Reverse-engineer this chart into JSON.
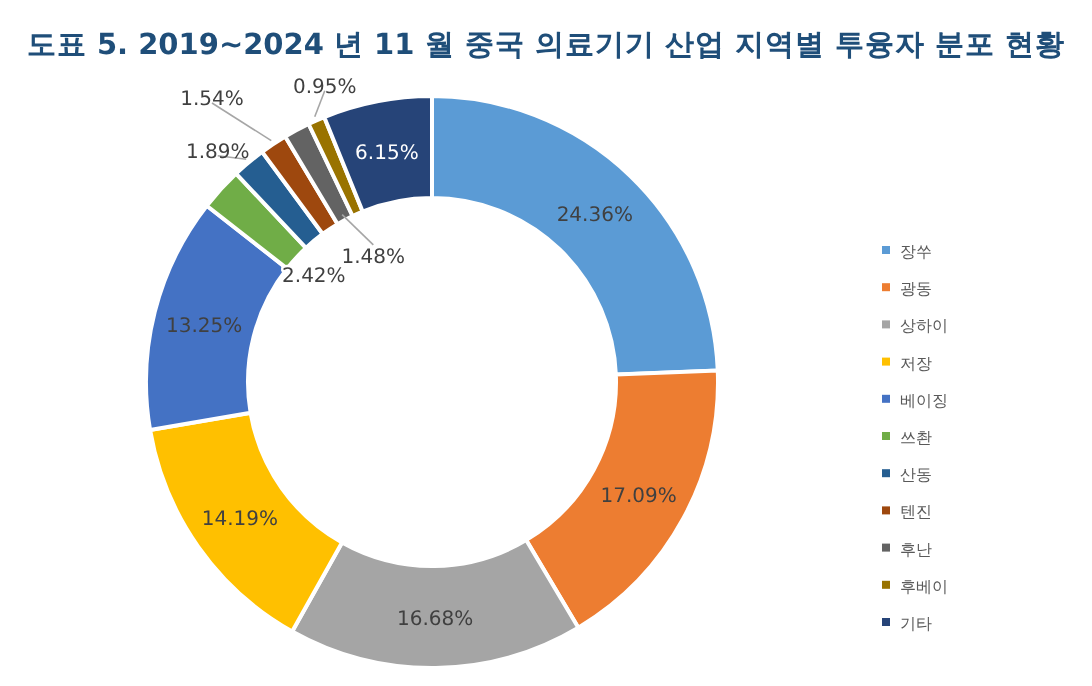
{
  "chart_data": {
    "type": "donut",
    "title": "도표 5. 2019~2024 년 11 월 중국 의료기기 산업 지역별 투융자 분포 현황",
    "categories": [
      "장쑤",
      "광동",
      "상하이",
      "저장",
      "베이징",
      "쓰촨",
      "산동",
      "텐진",
      "후난",
      "후베이",
      "기타"
    ],
    "values": [
      24.36,
      17.09,
      16.68,
      14.19,
      13.25,
      2.42,
      1.89,
      1.54,
      1.48,
      0.95,
      6.15
    ],
    "value_labels": [
      "24.36%",
      "17.09%",
      "16.68%",
      "14.19%",
      "13.25%",
      "2.42%",
      "1.89%",
      "1.54%",
      "1.48%",
      "0.95%",
      "6.15%"
    ],
    "colors": [
      "#5b9bd5",
      "#ed7d31",
      "#a5a5a5",
      "#ffc000",
      "#4472c4",
      "#70ad47",
      "#255e91",
      "#9e480e",
      "#636363",
      "#997300",
      "#264478"
    ],
    "legend": "right"
  }
}
